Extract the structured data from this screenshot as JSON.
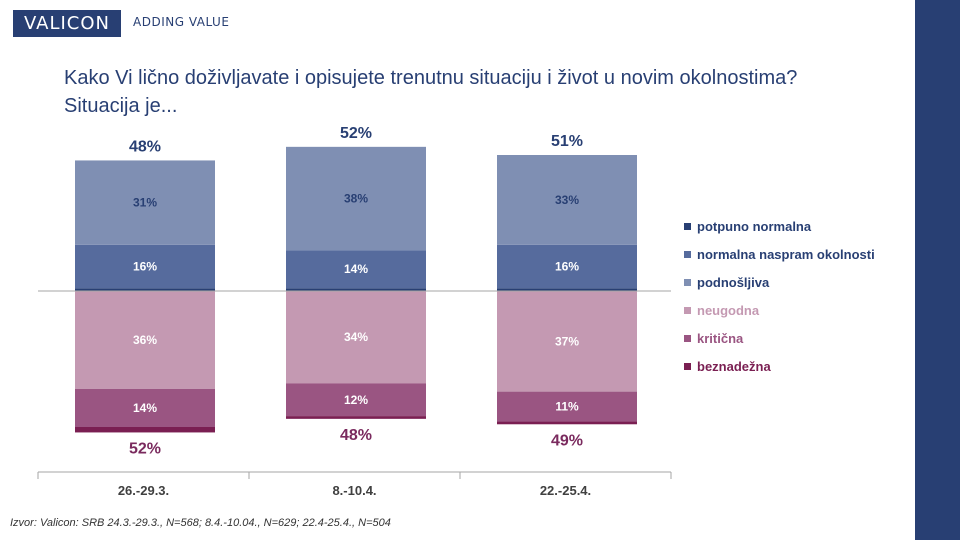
{
  "header": {
    "logo_text": "VALICON",
    "tagline": "ADDING VALUE"
  },
  "title_line1": "Kako Vi lično doživljavate i opisujete trenutnu situaciju i život u novim okolnostima?",
  "title_line2": "Situacija je...",
  "source": "Izvor: Valicon: SRB 24.3.-29.3., N=568; 8.4.-10.04., N=629; 22.4-25.4., N=504",
  "colors": {
    "brand": "#283f73",
    "potpuno_normalna": "#283f73",
    "normalna": "#566b9d",
    "podnosljiva": "#7f8fb3",
    "neugodna": "#c499b2",
    "kriticna": "#9a5582",
    "beznadezna": "#7a1f52",
    "total_negative": "#7a2a5e"
  },
  "chart_data": {
    "type": "bar",
    "stacked": "diverging",
    "categories": [
      "26.-29.3.",
      "8.-10.4.",
      "22.-25.4."
    ],
    "series": [
      {
        "name": "potpuno normalna",
        "direction": "positive",
        "values": [
          1,
          1,
          1
        ],
        "labels": [
          "",
          "",
          ""
        ]
      },
      {
        "name": "normalna naspram okolnosti",
        "direction": "positive",
        "values": [
          16,
          14,
          16
        ],
        "labels": [
          "16%",
          "14%",
          "16%"
        ]
      },
      {
        "name": "podnošljiva",
        "direction": "positive",
        "values": [
          31,
          38,
          33
        ],
        "labels": [
          "31%",
          "38%",
          "33%"
        ]
      },
      {
        "name": "neugodna",
        "direction": "negative",
        "values": [
          36,
          34,
          37
        ],
        "labels": [
          "36%",
          "34%",
          "37%"
        ]
      },
      {
        "name": "kritična",
        "direction": "negative",
        "values": [
          14,
          12,
          11
        ],
        "labels": [
          "14%",
          "12%",
          "11%"
        ]
      },
      {
        "name": "beznadežna",
        "direction": "negative",
        "values": [
          2,
          1,
          1
        ],
        "labels": [
          "",
          "",
          ""
        ]
      }
    ],
    "totals_positive": [
      "48%",
      "52%",
      "51%"
    ],
    "totals_negative": [
      "52%",
      "48%",
      "49%"
    ],
    "legend_position": "right",
    "grid": false
  }
}
